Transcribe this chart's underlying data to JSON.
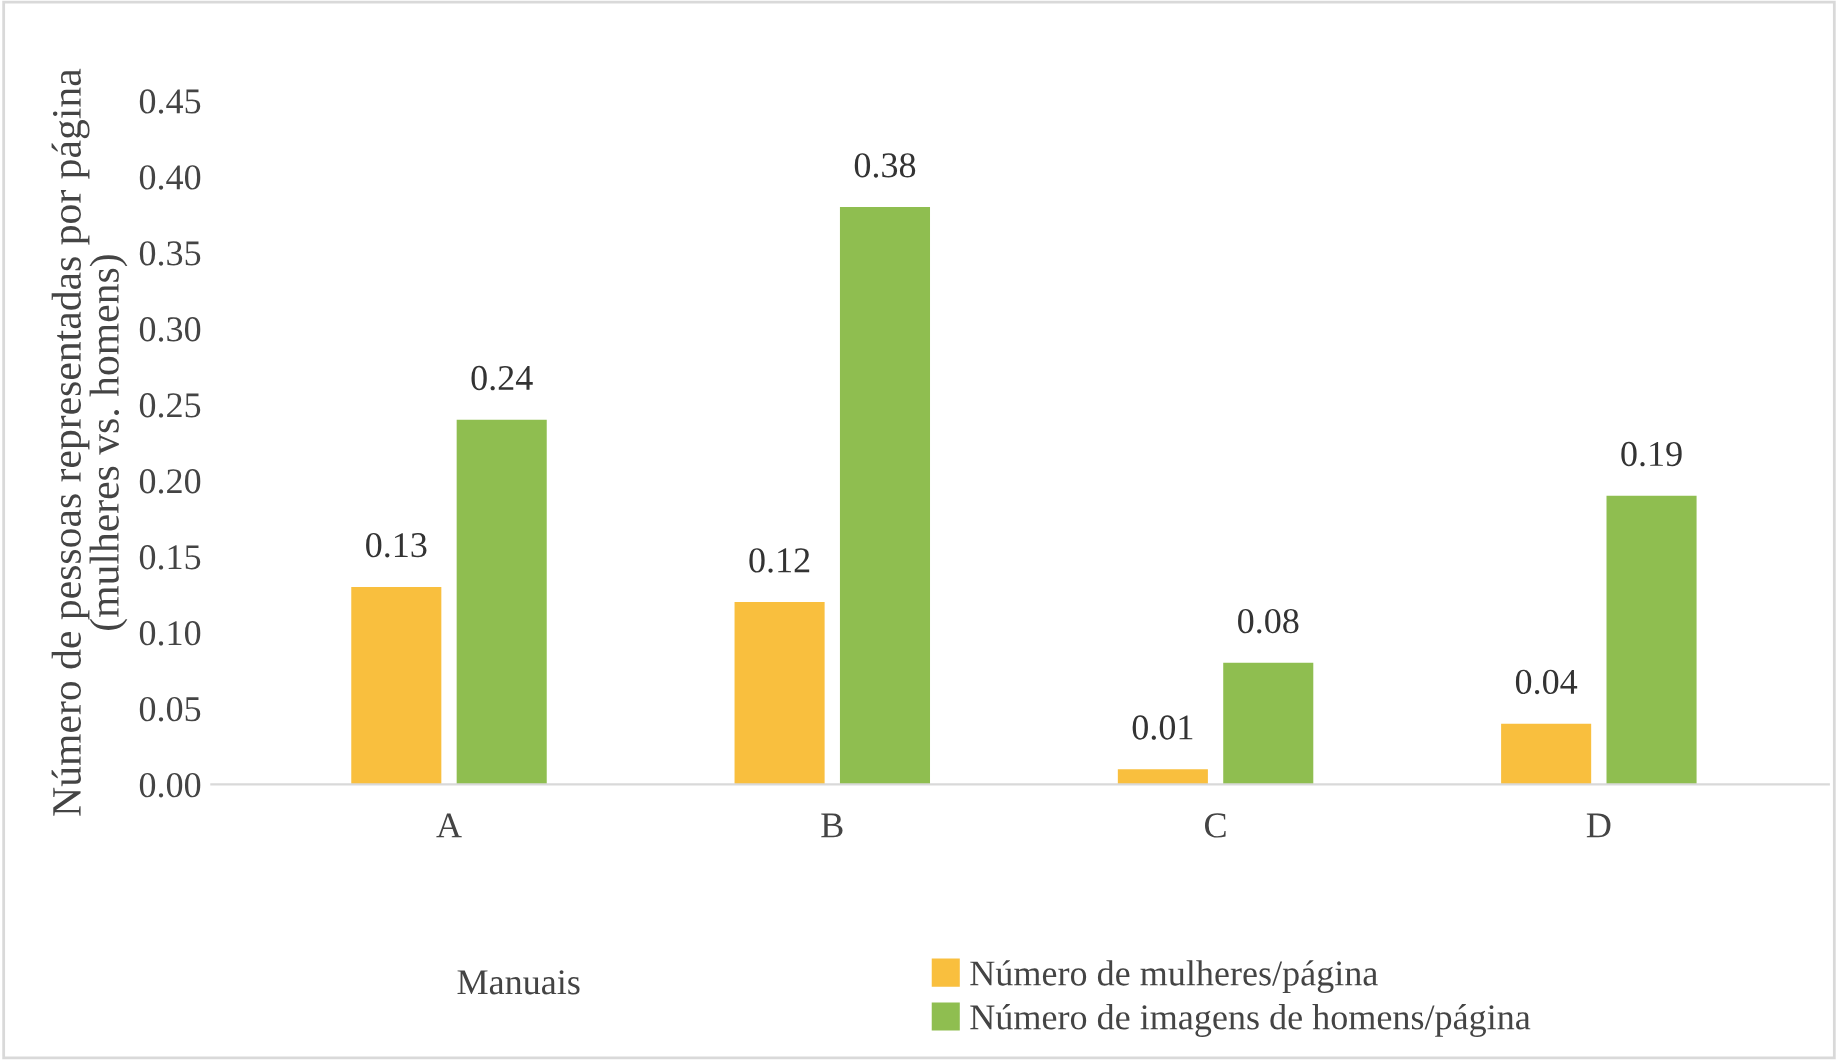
{
  "chart_data": {
    "type": "bar",
    "xlabel": "Manuais",
    "ylabel": "Número de pessoas representadas por página\n(mulheres vs. homens)",
    "categories": [
      "A",
      "B",
      "C",
      "D"
    ],
    "series": [
      {
        "name": "Número de mulheres/página",
        "color": "#f9bf3e",
        "values": [
          0.13,
          0.12,
          0.01,
          0.04
        ]
      },
      {
        "name": "Número de imagens de homens/página",
        "color": "#8fbe50",
        "values": [
          0.24,
          0.38,
          0.08,
          0.19
        ]
      }
    ],
    "ylim": [
      0,
      0.45
    ],
    "yticks": [
      {
        "value": 0,
        "label": "0.00"
      },
      {
        "value": 0.05,
        "label": "0.05"
      },
      {
        "value": 0.1,
        "label": "0.10"
      },
      {
        "value": 0.15,
        "label": "0.15"
      },
      {
        "value": 0.2,
        "label": "0.20"
      },
      {
        "value": 0.25,
        "label": "0.25"
      },
      {
        "value": 0.3,
        "label": "0.30"
      },
      {
        "value": 0.35,
        "label": "0.35"
      },
      {
        "value": 0.4,
        "label": "0.40"
      },
      {
        "value": 0.45,
        "label": "0.45"
      }
    ],
    "data_labels": true,
    "grid": false,
    "legend": "bottom"
  }
}
